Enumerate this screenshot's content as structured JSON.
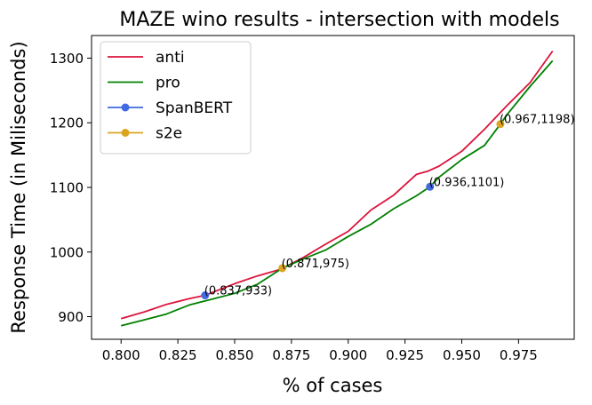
{
  "chart_data": {
    "type": "line",
    "title": "MAZE wino results - intersection with models",
    "xlabel": "% of cases",
    "ylabel": "Response Time (in Miliseconds)",
    "xlim": [
      0.787,
      0.9995
    ],
    "ylim": [
      865,
      1335
    ],
    "xticks": [
      0.8,
      0.825,
      0.85,
      0.875,
      0.9,
      0.925,
      0.95,
      0.975
    ],
    "xtick_labels": [
      "0.800",
      "0.825",
      "0.850",
      "0.875",
      "0.900",
      "0.925",
      "0.950",
      "0.975"
    ],
    "yticks": [
      900,
      1000,
      1100,
      1200,
      1300
    ],
    "ytick_labels": [
      "900",
      "1000",
      "1100",
      "1200",
      "1300"
    ],
    "grid": false,
    "legend_position": "top-left",
    "series": [
      {
        "name": "anti",
        "color": "#dc143c",
        "marker": "none",
        "x": [
          0.8,
          0.81,
          0.82,
          0.83,
          0.837,
          0.85,
          0.86,
          0.87,
          0.88,
          0.89,
          0.9,
          0.91,
          0.92,
          0.93,
          0.935,
          0.94,
          0.95,
          0.96,
          0.97,
          0.98,
          0.99
        ],
        "y": [
          897,
          907,
          919,
          928,
          933,
          951,
          963,
          973,
          991,
          1012,
          1032,
          1065,
          1088,
          1120,
          1125,
          1133,
          1156,
          1190,
          1227,
          1262,
          1311
        ]
      },
      {
        "name": "pro",
        "color": "#008000",
        "marker": "none",
        "x": [
          0.8,
          0.81,
          0.82,
          0.83,
          0.84,
          0.85,
          0.86,
          0.871,
          0.88,
          0.89,
          0.9,
          0.91,
          0.92,
          0.93,
          0.936,
          0.94,
          0.95,
          0.96,
          0.967,
          0.97,
          0.98,
          0.99
        ],
        "y": [
          886,
          895,
          904,
          918,
          927,
          936,
          950,
          975,
          989,
          1003,
          1024,
          1043,
          1067,
          1087,
          1101,
          1116,
          1143,
          1165,
          1198,
          1213,
          1256,
          1296
        ]
      },
      {
        "name": "SpanBERT",
        "color": "#4169e1",
        "marker": "circle",
        "x": [
          0.837,
          0.936
        ],
        "y": [
          933,
          1101
        ]
      },
      {
        "name": "s2e",
        "color": "#daa520",
        "marker": "circle",
        "x": [
          0.871,
          0.967
        ],
        "y": [
          975,
          1198
        ]
      }
    ],
    "annotations": [
      {
        "x": 0.837,
        "y": 933,
        "text": "(0.837,933)"
      },
      {
        "x": 0.871,
        "y": 975,
        "text": "(0.871,975)"
      },
      {
        "x": 0.936,
        "y": 1101,
        "text": "(0.936,1101)"
      },
      {
        "x": 0.967,
        "y": 1198,
        "text": "(0.967,1198)"
      }
    ]
  }
}
